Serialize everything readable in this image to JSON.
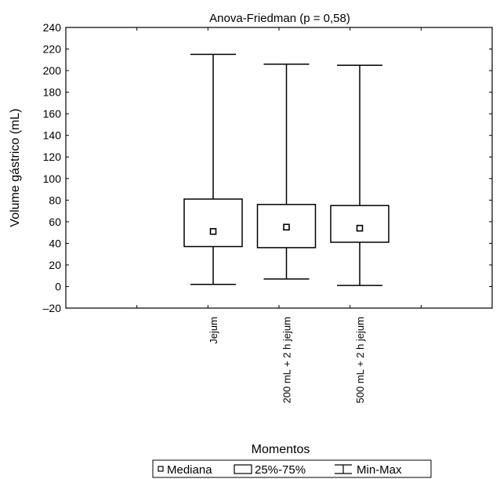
{
  "chart_data": {
    "type": "box",
    "title": "Anova-Friedman (p = 0,58)",
    "xlabel": "Momentos",
    "ylabel": "Volume gástrico (mL)",
    "ylim": [
      -20,
      240
    ],
    "yticks": [
      -20,
      0,
      20,
      40,
      60,
      80,
      100,
      120,
      140,
      160,
      180,
      200,
      220,
      240
    ],
    "ytick_labels": [
      "–20",
      "0",
      "20",
      "40",
      "60",
      "80",
      "100",
      "120",
      "140",
      "160",
      "180",
      "200",
      "220",
      "240"
    ],
    "categories": [
      "Jejum",
      "200 mL + 2 h jejum",
      "500 mL + 2 h jejum"
    ],
    "boxes": [
      {
        "category": "Jejum",
        "min": 2,
        "q1": 37,
        "median": 51,
        "q3": 81,
        "max": 215
      },
      {
        "category": "200 mL + 2 h jejum",
        "min": 7,
        "q1": 36,
        "median": 55,
        "q3": 76,
        "max": 206
      },
      {
        "category": "500 mL + 2 h jejum",
        "min": 1,
        "q1": 41,
        "median": 54,
        "q3": 75,
        "max": 205
      }
    ],
    "legend": {
      "position": "bottom",
      "items": [
        "Mediana",
        "25%-75%",
        "Min-Max"
      ]
    },
    "grid": false
  }
}
